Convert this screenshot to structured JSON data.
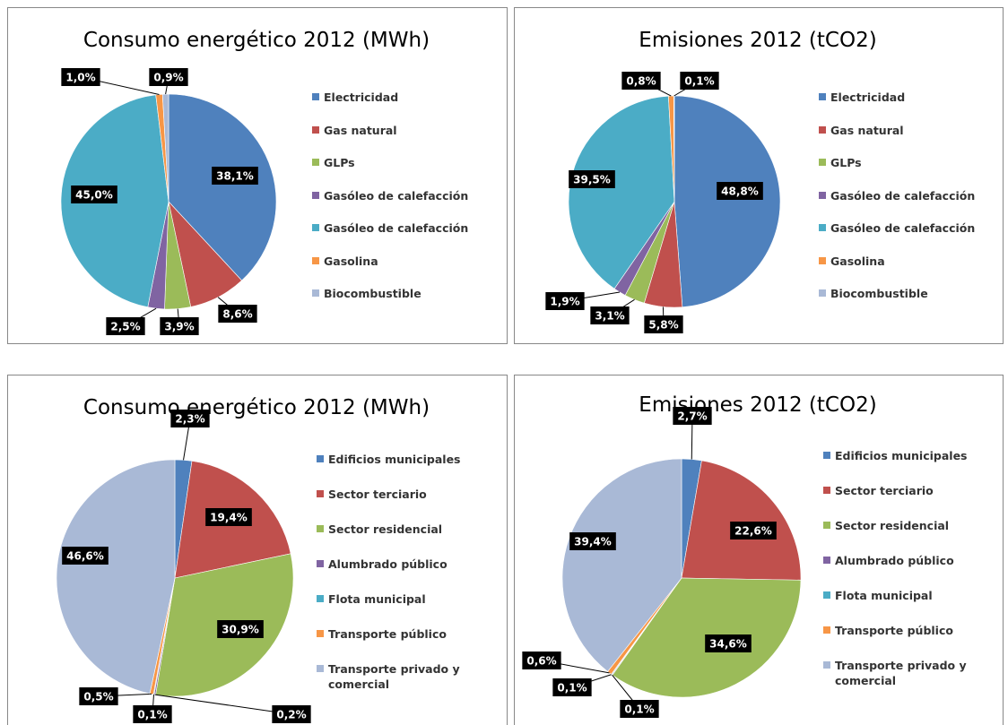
{
  "chart_data": [
    {
      "type": "pie",
      "title": "Consumo energético 2012 (MWh)",
      "categories": [
        "Electricidad",
        "Gas natural",
        "GLPs",
        "Gasóleo de calefacción",
        "Gasóleo de calefacción",
        "Gasolina",
        "Biocombustible"
      ],
      "values": [
        38.1,
        8.6,
        3.9,
        2.5,
        45.0,
        1.0,
        0.9
      ],
      "value_labels": [
        "38,1%",
        "8,6%",
        "3,9%",
        "2,5%",
        "45,0%",
        "1,0%",
        "0,9%"
      ],
      "colors": [
        "#4f81bd",
        "#c0504d",
        "#9bbb59",
        "#8064a2",
        "#4bacc6",
        "#f79646",
        "#a9b9d6"
      ]
    },
    {
      "type": "pie",
      "title": "Emisiones 2012 (tCO2)",
      "categories": [
        "Electricidad",
        "Gas natural",
        "GLPs",
        "Gasóleo de calefacción",
        "Gasóleo de calefacción",
        "Gasolina",
        "Biocombustible"
      ],
      "values": [
        48.8,
        5.8,
        3.1,
        1.9,
        39.5,
        0.8,
        0.1
      ],
      "value_labels": [
        "48,8%",
        "5,8%",
        "3,1%",
        "1,9%",
        "39,5%",
        "0,8%",
        "0,1%"
      ],
      "colors": [
        "#4f81bd",
        "#c0504d",
        "#9bbb59",
        "#8064a2",
        "#4bacc6",
        "#f79646",
        "#a9b9d6"
      ]
    },
    {
      "type": "pie",
      "title": "Consumo energético 2012 (MWh)",
      "categories": [
        "Edificios municipales",
        "Sector terciario",
        "Sector residencial",
        "Alumbrado público",
        "Flota municipal",
        "Transporte público",
        "Transporte privado y comercial"
      ],
      "values": [
        2.3,
        19.4,
        30.9,
        0.2,
        0.1,
        0.5,
        46.6
      ],
      "value_labels": [
        "2,3%",
        "19,4%",
        "30,9%",
        "0,2%",
        "0,1%",
        "0,5%",
        "46,6%"
      ],
      "colors": [
        "#4f81bd",
        "#c0504d",
        "#9bbb59",
        "#8064a2",
        "#4bacc6",
        "#f79646",
        "#a9b9d6"
      ]
    },
    {
      "type": "pie",
      "title": "Emisiones 2012 (tCO2)",
      "categories": [
        "Edificios municipales",
        "Sector terciario",
        "Sector residencial",
        "Alumbrado público",
        "Flota municipal",
        "Transporte público",
        "Transporte privado y comercial"
      ],
      "values": [
        2.7,
        22.6,
        34.6,
        0.1,
        0.1,
        0.6,
        39.4
      ],
      "value_labels": [
        "2,7%",
        "22,6%",
        "34,6%",
        "0,1%",
        "0,1%",
        "0,6%",
        "39,4%"
      ],
      "colors": [
        "#4f81bd",
        "#c0504d",
        "#9bbb59",
        "#8064a2",
        "#4bacc6",
        "#f79646",
        "#a9b9d6"
      ]
    }
  ]
}
